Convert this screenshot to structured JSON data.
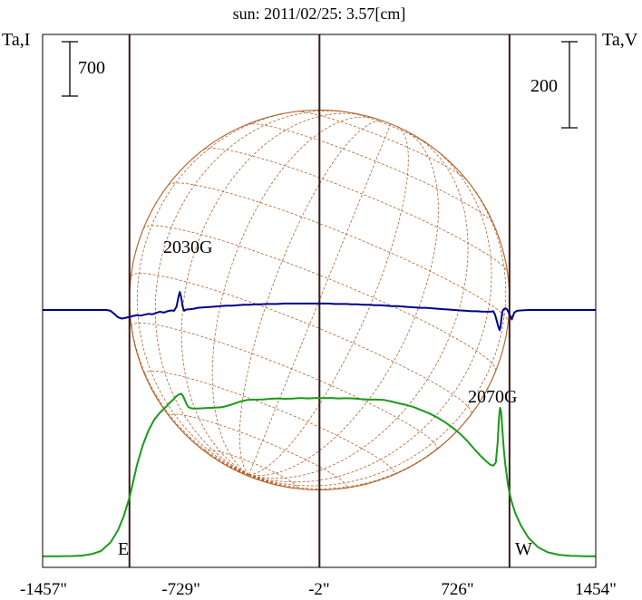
{
  "chart_data": {
    "type": "line",
    "title": "sun: 2011/02/25: 3.57[cm]",
    "left_axis_label": "Ta,I",
    "right_axis_label": "Ta,V",
    "left_scale_bar": "700",
    "right_scale_bar": "200",
    "xlim": [
      -1457,
      1454
    ],
    "x_tick_labels": [
      "-1457\"",
      "-729\"",
      "-2\"",
      "726\"",
      "1454\""
    ],
    "x_ticks": [
      -1457,
      -729,
      -2,
      726,
      1454
    ],
    "limb_markers": [
      {
        "label": "E",
        "x": -1000
      },
      {
        "label": "W",
        "x": 1000
      }
    ],
    "center_marker_x": 0,
    "annotations": [
      {
        "text": "2030G",
        "x": -735
      },
      {
        "text": "2070G",
        "x": 975
      }
    ],
    "series": [
      {
        "color": "#1a9a1a",
        "points": [
          [
            -1457,
            2
          ],
          [
            -1380,
            3
          ],
          [
            -1300,
            6
          ],
          [
            -1250,
            12
          ],
          [
            -1200,
            30
          ],
          [
            -1150,
            70
          ],
          [
            -1100,
            180
          ],
          [
            -1060,
            340
          ],
          [
            -1030,
            520
          ],
          [
            -1000,
            760
          ],
          [
            -980,
            970
          ],
          [
            -960,
            1180
          ],
          [
            -930,
            1430
          ],
          [
            -900,
            1620
          ],
          [
            -870,
            1760
          ],
          [
            -840,
            1850
          ],
          [
            -810,
            1920
          ],
          [
            -790,
            1975
          ],
          [
            -770,
            2020
          ],
          [
            -755,
            2060
          ],
          [
            -740,
            2085
          ],
          [
            -728,
            2095
          ],
          [
            -718,
            2065
          ],
          [
            -708,
            2010
          ],
          [
            -698,
            1955
          ],
          [
            -688,
            1920
          ],
          [
            -670,
            1905
          ],
          [
            -640,
            1905
          ],
          [
            -600,
            1910
          ],
          [
            -560,
            1915
          ],
          [
            -520,
            1920
          ],
          [
            -500,
            1930
          ],
          [
            -470,
            1950
          ],
          [
            -440,
            1975
          ],
          [
            -410,
            2000
          ],
          [
            -380,
            2015
          ],
          [
            -340,
            2020
          ],
          [
            -300,
            2022
          ],
          [
            -260,
            2030
          ],
          [
            -220,
            2035
          ],
          [
            -180,
            2030
          ],
          [
            -140,
            2033
          ],
          [
            -100,
            2040
          ],
          [
            -60,
            2035
          ],
          [
            -20,
            2040
          ],
          [
            20,
            2038
          ],
          [
            60,
            2040
          ],
          [
            100,
            2035
          ],
          [
            140,
            2037
          ],
          [
            180,
            2035
          ],
          [
            220,
            2025
          ],
          [
            260,
            2020
          ],
          [
            300,
            2020
          ],
          [
            340,
            2015
          ],
          [
            380,
            1995
          ],
          [
            420,
            1970
          ],
          [
            460,
            1950
          ],
          [
            500,
            1920
          ],
          [
            540,
            1880
          ],
          [
            580,
            1840
          ],
          [
            620,
            1790
          ],
          [
            660,
            1730
          ],
          [
            700,
            1660
          ],
          [
            740,
            1580
          ],
          [
            780,
            1480
          ],
          [
            820,
            1370
          ],
          [
            850,
            1290
          ],
          [
            880,
            1220
          ],
          [
            900,
            1180
          ],
          [
            915,
            1170
          ],
          [
            928,
            1210
          ],
          [
            938,
            1480
          ],
          [
            945,
            1790
          ],
          [
            950,
            1915
          ],
          [
            956,
            1870
          ],
          [
            962,
            1650
          ],
          [
            970,
            1380
          ],
          [
            978,
            1180
          ],
          [
            985,
            1060
          ],
          [
            992,
            920
          ],
          [
            1000,
            820
          ],
          [
            1012,
            700
          ],
          [
            1030,
            560
          ],
          [
            1060,
            400
          ],
          [
            1100,
            240
          ],
          [
            1150,
            120
          ],
          [
            1200,
            55
          ],
          [
            1260,
            22
          ],
          [
            1320,
            9
          ],
          [
            1400,
            4
          ],
          [
            1454,
            2
          ]
        ]
      },
      {
        "color": "#00008b",
        "points": [
          [
            -1457,
            0
          ],
          [
            -1120,
            0
          ],
          [
            -1100,
            -2
          ],
          [
            -1080,
            -9
          ],
          [
            -1060,
            -17
          ],
          [
            -1040,
            -20
          ],
          [
            -1020,
            -18
          ],
          [
            -1000,
            -16
          ],
          [
            -980,
            -14
          ],
          [
            -960,
            -12
          ],
          [
            -940,
            -13
          ],
          [
            -920,
            -11
          ],
          [
            -900,
            -9
          ],
          [
            -880,
            -10
          ],
          [
            -860,
            -7
          ],
          [
            -840,
            -4
          ],
          [
            -820,
            -6
          ],
          [
            -800,
            -3
          ],
          [
            -780,
            -1
          ],
          [
            -765,
            -2
          ],
          [
            -752,
            8
          ],
          [
            -742,
            30
          ],
          [
            -735,
            42
          ],
          [
            -728,
            30
          ],
          [
            -720,
            8
          ],
          [
            -712,
            -2
          ],
          [
            -700,
            1
          ],
          [
            -680,
            2
          ],
          [
            -660,
            3
          ],
          [
            -640,
            5
          ],
          [
            -610,
            6
          ],
          [
            -580,
            7
          ],
          [
            -550,
            8
          ],
          [
            -520,
            9
          ],
          [
            -490,
            10
          ],
          [
            -460,
            10
          ],
          [
            -430,
            11
          ],
          [
            -400,
            12
          ],
          [
            -370,
            12
          ],
          [
            -340,
            13
          ],
          [
            -310,
            13
          ],
          [
            -280,
            14
          ],
          [
            -250,
            14
          ],
          [
            -220,
            14
          ],
          [
            -190,
            15
          ],
          [
            -160,
            15
          ],
          [
            -130,
            15
          ],
          [
            -100,
            15
          ],
          [
            -70,
            15
          ],
          [
            -40,
            15
          ],
          [
            -10,
            15
          ],
          [
            20,
            15
          ],
          [
            50,
            15
          ],
          [
            80,
            14
          ],
          [
            110,
            14
          ],
          [
            140,
            14
          ],
          [
            170,
            13
          ],
          [
            200,
            13
          ],
          [
            230,
            12
          ],
          [
            260,
            12
          ],
          [
            290,
            11
          ],
          [
            320,
            11
          ],
          [
            350,
            10
          ],
          [
            380,
            9
          ],
          [
            410,
            9
          ],
          [
            440,
            8
          ],
          [
            470,
            7
          ],
          [
            500,
            6
          ],
          [
            530,
            5
          ],
          [
            560,
            5
          ],
          [
            590,
            4
          ],
          [
            620,
            3
          ],
          [
            650,
            2
          ],
          [
            680,
            1
          ],
          [
            710,
            0
          ],
          [
            740,
            -1
          ],
          [
            770,
            -2
          ],
          [
            800,
            -3
          ],
          [
            830,
            -3
          ],
          [
            860,
            -4
          ],
          [
            880,
            -4
          ],
          [
            900,
            -4
          ],
          [
            915,
            -3
          ],
          [
            925,
            -12
          ],
          [
            935,
            -28
          ],
          [
            942,
            -40
          ],
          [
            948,
            -47
          ],
          [
            953,
            -38
          ],
          [
            958,
            -18
          ],
          [
            963,
            -3
          ],
          [
            970,
            2
          ],
          [
            978,
            4
          ],
          [
            988,
            1
          ],
          [
            1000,
            -10
          ],
          [
            1012,
            -22
          ],
          [
            1025,
            -6
          ],
          [
            1040,
            -2
          ],
          [
            1060,
            -1
          ],
          [
            1100,
            0
          ],
          [
            1140,
            0
          ],
          [
            1454,
            0
          ]
        ]
      }
    ]
  }
}
